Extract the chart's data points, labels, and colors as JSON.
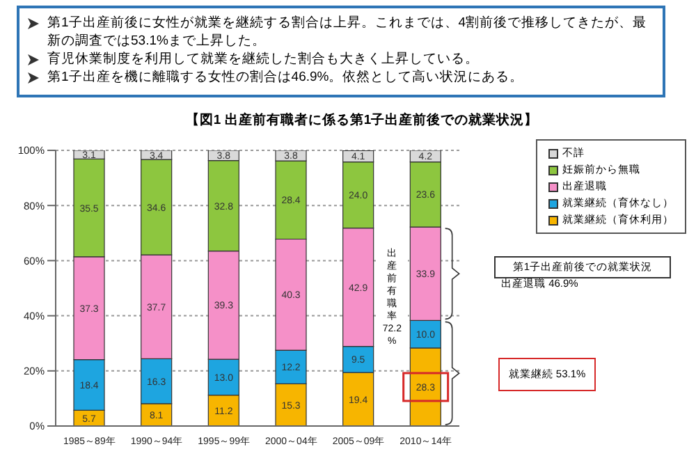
{
  "chart_data": {
    "type": "bar",
    "stacked": true,
    "title": "【図1 出産前有職者に係る第1子出産前後での就業状況】",
    "categories": [
      "1985～89年",
      "1990～94年",
      "1995～99年",
      "2000～04年",
      "2005～09年",
      "2010～14年"
    ],
    "series": [
      {
        "name": "就業継続（育休利用）",
        "color": "#f7b500",
        "values": [
          5.7,
          8.1,
          11.2,
          15.3,
          19.4,
          28.3
        ],
        "value_labels": [
          "5.7",
          "8.1",
          "11.2",
          "15.3",
          "19.4",
          "28.3"
        ]
      },
      {
        "name": "就業継続（育休なし）",
        "color": "#1ea5e0",
        "values": [
          18.4,
          16.3,
          13.0,
          12.2,
          9.5,
          10.0
        ],
        "value_labels": [
          "18.4",
          "16.3",
          "13.0",
          "12.2",
          "9.5",
          "10.0"
        ]
      },
      {
        "name": "出産退職",
        "color": "#f590c8",
        "values": [
          37.3,
          37.7,
          39.3,
          40.3,
          42.9,
          33.9
        ],
        "value_labels": [
          "37.3",
          "37.7",
          "39.3",
          "40.3",
          "42.9",
          "33.9"
        ]
      },
      {
        "name": "妊娠前から無職",
        "color": "#8dc63f",
        "values": [
          35.5,
          34.6,
          32.8,
          28.4,
          24.0,
          23.6
        ],
        "value_labels": [
          "35.5",
          "34.6",
          "32.8",
          "28.4",
          "24.0",
          "23.6"
        ]
      },
      {
        "name": "不詳",
        "color": "#d9d9d9",
        "values": [
          3.1,
          3.4,
          3.8,
          3.8,
          4.1,
          4.2
        ],
        "value_labels": [
          "3.1",
          "3.4",
          "3.8",
          "3.8",
          "4.1",
          "4.2"
        ]
      }
    ],
    "ylim": [
      0,
      100
    ],
    "yticks": [
      {
        "value": 0,
        "label": "0%"
      },
      {
        "value": 20,
        "label": "20%"
      },
      {
        "value": 40,
        "label": "40%"
      },
      {
        "value": 60,
        "label": "60%"
      },
      {
        "value": 80,
        "label": "80%"
      },
      {
        "value": 100,
        "label": "100%"
      }
    ],
    "grid": "y",
    "legend": "top right",
    "annotations": [
      "第1子出産前後に女性が就業を継続する割合は上昇。これまでは、4割前後で推移してきたが、最新の調査では53.1%まで上昇した。",
      "育児休業制度を利用して就業を継続した割合も大きく上昇している。",
      "第1子出産を機に離職する女性の割合は46.9%。依然として高い状況にある。",
      "第1子出産前後での就業状況",
      "出産退職 46.9%",
      "就業継続 53.1%",
      "出産前有職率 72.2 %"
    ]
  }
}
